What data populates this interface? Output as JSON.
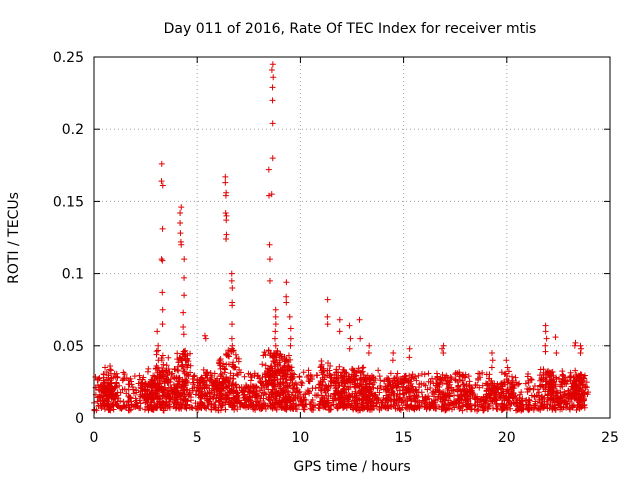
{
  "chart_data": {
    "type": "scatter",
    "title": "Day 011 of 2016, Rate Of TEC Index for receiver mtis",
    "xlabel": "GPS time / hours",
    "ylabel": "ROTI / TECUs",
    "xlim": [
      0,
      25
    ],
    "ylim": [
      0,
      0.25
    ],
    "xticks": [
      0,
      5,
      10,
      15,
      20,
      25
    ],
    "yticks": [
      0,
      0.05,
      0.1,
      0.15,
      0.2,
      0.25
    ],
    "xtick_labels": [
      "0",
      "5",
      "10",
      "15",
      "20",
      "25"
    ],
    "ytick_labels": [
      "0",
      "0.05",
      "0.1",
      "0.15",
      "0.2",
      "0.25"
    ],
    "grid": true,
    "marker": "plus",
    "color": "#e00000",
    "series": [
      {
        "name": "ROTI",
        "x_range": [
          0,
          23.8
        ],
        "baseline": [
          0.005,
          0.03
        ],
        "spikes": [
          {
            "x": 0.5,
            "values": [
              0.03,
              0.028,
              0.035
            ]
          },
          {
            "x": 0.8,
            "values": [
              0.036,
              0.033
            ]
          },
          {
            "x": 2.6,
            "values": [
              0.032,
              0.034
            ]
          },
          {
            "x": 3.1,
            "values": [
              0.04,
              0.05,
              0.06
            ]
          },
          {
            "x": 3.3,
            "values": [
              0.176,
              0.164,
              0.161,
              0.131,
              0.11,
              0.109,
              0.087,
              0.075,
              0.065
            ]
          },
          {
            "x": 3.7,
            "values": [
              0.027,
              0.025
            ]
          },
          {
            "x": 4.2,
            "values": [
              0.146,
              0.142,
              0.135,
              0.128,
              0.122,
              0.12
            ]
          },
          {
            "x": 4.35,
            "values": [
              0.11,
              0.097,
              0.085,
              0.073,
              0.063,
              0.058,
              0.046,
              0.044
            ]
          },
          {
            "x": 5.4,
            "values": [
              0.057,
              0.055
            ]
          },
          {
            "x": 6.1,
            "values": [
              0.04,
              0.034
            ]
          },
          {
            "x": 6.4,
            "values": [
              0.167,
              0.163,
              0.156,
              0.154,
              0.142,
              0.14,
              0.137,
              0.127,
              0.124
            ]
          },
          {
            "x": 6.7,
            "values": [
              0.1,
              0.095,
              0.09,
              0.08,
              0.078,
              0.065,
              0.055,
              0.05,
              0.048
            ]
          },
          {
            "x": 7.6,
            "values": [
              0.03,
              0.026
            ]
          },
          {
            "x": 8.5,
            "values": [
              0.172,
              0.154,
              0.12,
              0.11,
              0.095
            ]
          },
          {
            "x": 8.65,
            "values": [
              0.245,
              0.241,
              0.236,
              0.229,
              0.22,
              0.204,
              0.18,
              0.155
            ]
          },
          {
            "x": 8.8,
            "values": [
              0.075,
              0.07,
              0.065,
              0.06,
              0.055,
              0.05,
              0.045
            ]
          },
          {
            "x": 9.3,
            "values": [
              0.094,
              0.084,
              0.08
            ]
          },
          {
            "x": 9.5,
            "values": [
              0.07,
              0.062,
              0.055,
              0.05
            ]
          },
          {
            "x": 11.3,
            "values": [
              0.082,
              0.07,
              0.065
            ]
          },
          {
            "x": 11.9,
            "values": [
              0.068,
              0.06
            ]
          },
          {
            "x": 12.4,
            "values": [
              0.064,
              0.055,
              0.048
            ]
          },
          {
            "x": 12.9,
            "values": [
              0.068,
              0.055
            ]
          },
          {
            "x": 13.3,
            "values": [
              0.05,
              0.045
            ]
          },
          {
            "x": 14.5,
            "values": [
              0.045,
              0.04
            ]
          },
          {
            "x": 15.3,
            "values": [
              0.048,
              0.042
            ]
          },
          {
            "x": 16.9,
            "values": [
              0.048,
              0.05,
              0.045
            ]
          },
          {
            "x": 18.0,
            "values": [
              0.028,
              0.03
            ]
          },
          {
            "x": 19.3,
            "values": [
              0.045,
              0.04,
              0.035
            ]
          },
          {
            "x": 20.0,
            "values": [
              0.04,
              0.035
            ]
          },
          {
            "x": 21.9,
            "values": [
              0.064,
              0.06,
              0.055,
              0.05,
              0.046
            ]
          },
          {
            "x": 22.4,
            "values": [
              0.056,
              0.045
            ]
          },
          {
            "x": 23.3,
            "values": [
              0.052,
              0.05
            ]
          },
          {
            "x": 23.6,
            "values": [
              0.05,
              0.048,
              0.045
            ]
          }
        ]
      }
    ]
  }
}
